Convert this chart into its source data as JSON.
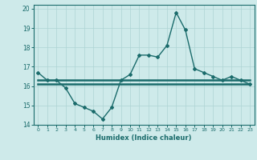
{
  "xlabel": "Humidex (Indice chaleur)",
  "ylabel": "",
  "background_color": "#ceeaea",
  "line_color": "#1a6b6b",
  "x_values": [
    0,
    1,
    2,
    3,
    4,
    5,
    6,
    7,
    8,
    9,
    10,
    11,
    12,
    13,
    14,
    15,
    16,
    17,
    18,
    19,
    20,
    21,
    22,
    23
  ],
  "y_main": [
    16.7,
    16.3,
    16.3,
    15.9,
    15.1,
    14.9,
    14.7,
    14.3,
    14.9,
    16.3,
    16.6,
    17.6,
    17.6,
    17.5,
    18.1,
    19.8,
    18.9,
    16.9,
    16.7,
    16.5,
    16.3,
    16.5,
    16.3,
    16.1
  ],
  "y_flat1": [
    16.3,
    16.3,
    16.3,
    16.3,
    16.3,
    16.3,
    16.3,
    16.3,
    16.3,
    16.3,
    16.3,
    16.3,
    16.3,
    16.3,
    16.3,
    16.3,
    16.3,
    16.3,
    16.3,
    16.3,
    16.3,
    16.3,
    16.3,
    16.3
  ],
  "y_flat2": [
    16.1,
    16.1,
    16.1,
    16.1,
    16.1,
    16.1,
    16.1,
    16.1,
    16.1,
    16.1,
    16.1,
    16.1,
    16.1,
    16.1,
    16.1,
    16.1,
    16.1,
    16.1,
    16.1,
    16.1,
    16.1,
    16.1,
    16.1,
    16.1
  ],
  "xlim": [
    -0.5,
    23.5
  ],
  "ylim": [
    14.0,
    20.2
  ],
  "yticks": [
    14,
    15,
    16,
    17,
    18,
    19,
    20
  ],
  "xticks": [
    0,
    1,
    2,
    3,
    4,
    5,
    6,
    7,
    8,
    9,
    10,
    11,
    12,
    13,
    14,
    15,
    16,
    17,
    18,
    19,
    20,
    21,
    22,
    23
  ],
  "grid_color": "#aed4d4",
  "marker": "D",
  "markersize": 2.0,
  "linewidth": 1.0,
  "flat_linewidth": 1.8
}
